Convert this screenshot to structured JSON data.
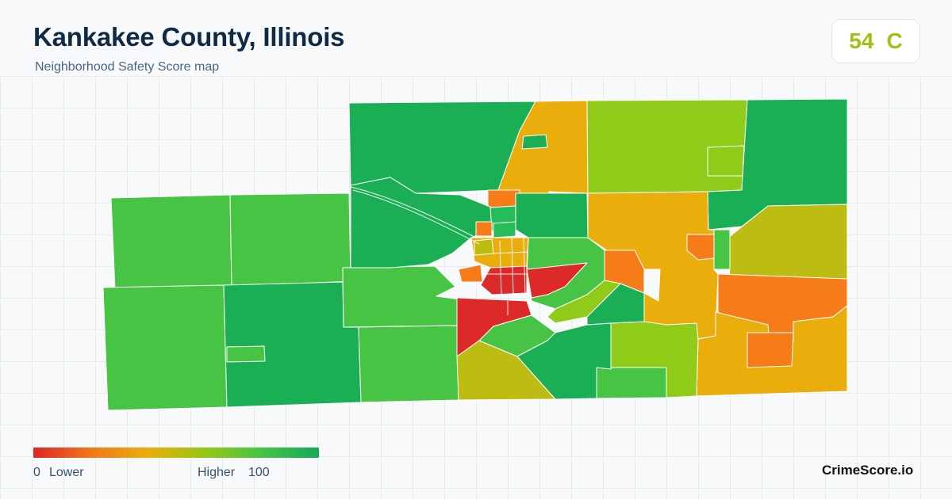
{
  "header": {
    "title": "Kankakee County, Illinois",
    "subtitle": "Neighborhood Safety Score map"
  },
  "score": {
    "value": "54",
    "grade": "C",
    "color": "#a3c010"
  },
  "legend": {
    "min_label": "0",
    "low_label": "Lower",
    "high_label": "Higher",
    "max_label": "100",
    "color_stops": [
      "#dc2626",
      "#f2761a",
      "#e9ad0c",
      "#97c614",
      "#45c545",
      "#16a85a"
    ]
  },
  "brand": {
    "name": "CrimeScore.io"
  },
  "map": {
    "palette": {
      "dark_green": "#1aaf55",
      "green": "#48c444",
      "bright_green": "#25bd5a",
      "yellow_green": "#8fcb18",
      "olive": "#bcbc12",
      "amber": "#e9ad0c",
      "orange": "#f57c19",
      "red": "#dc2a28",
      "border": "#ffffff"
    }
  }
}
